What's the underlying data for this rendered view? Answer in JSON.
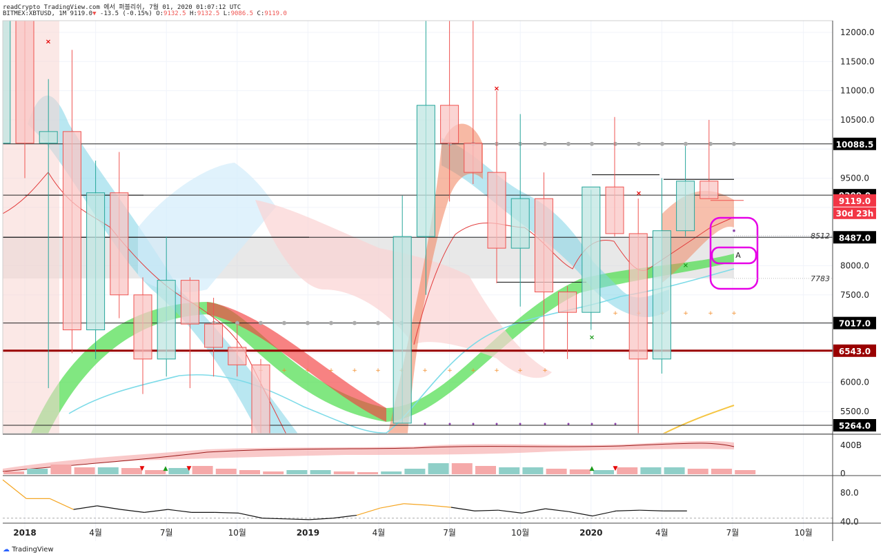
{
  "header": {
    "attribution": "readCrypto TradingView.com 에서 퍼블리쉬, 7월 01, 2020 01:07:12 UTC",
    "ohlc_line": {
      "symbol": "BITMEX:XBTUSD, 1M",
      "last": "9119.0",
      "change": "-13.5 (-0.15%)",
      "o_label": "O:",
      "o": "9132.5",
      "h_label": "H:",
      "h": "9132.5",
      "l_label": "L:",
      "l": "9086.5",
      "c_label": "C:",
      "c": "9119.0"
    }
  },
  "footer": {
    "brand": "TradingView"
  },
  "colors": {
    "up": "#26a69a",
    "down": "#ef5350",
    "grid": "#f0f3fa",
    "magenta": "#e600e6",
    "darkred": "#990000"
  },
  "chart_data": [
    {
      "type": "candlestick",
      "title": "BITMEX:XBTUSD, 1M",
      "x_ticks": [
        "2018",
        "4월",
        "7월",
        "10월",
        "2019",
        "4월",
        "7월",
        "10월",
        "2020",
        "4월",
        "7월",
        "10월"
      ],
      "ylim": [
        5200,
        12300
      ],
      "y_ticks": [
        "12000.0",
        "11500.0",
        "11000.0",
        "10500.0",
        "9500.0",
        "8000.0",
        "7500.0",
        "6000.0",
        "5500.0"
      ],
      "candles": [
        {
          "month": "2017-12",
          "open": 10100,
          "high": 12300,
          "low": 9500,
          "close": 12300
        },
        {
          "month": "2018-01",
          "open": 12300,
          "high": 12300,
          "low": 9500,
          "close": 10100
        },
        {
          "month": "2018-02",
          "open": 10100,
          "high": 11200,
          "low": 5900,
          "close": 10300
        },
        {
          "month": "2018-03",
          "open": 10300,
          "high": 11700,
          "low": 6500,
          "close": 6900
        },
        {
          "month": "2018-04",
          "open": 6900,
          "high": 9800,
          "low": 6400,
          "close": 9250
        },
        {
          "month": "2018-05",
          "open": 9250,
          "high": 9950,
          "low": 7100,
          "close": 7500
        },
        {
          "month": "2018-06",
          "open": 7500,
          "high": 7800,
          "low": 5800,
          "close": 6400
        },
        {
          "month": "2018-07",
          "open": 6400,
          "high": 8500,
          "low": 6100,
          "close": 7750
        },
        {
          "month": "2018-08",
          "open": 7750,
          "high": 7800,
          "low": 5900,
          "close": 7000
        },
        {
          "month": "2018-09",
          "open": 7000,
          "high": 7450,
          "low": 6100,
          "close": 6600
        },
        {
          "month": "2018-10",
          "open": 6600,
          "high": 7000,
          "low": 6100,
          "close": 6300
        },
        {
          "month": "2018-11",
          "open": 6300,
          "high": 6400,
          "low": 3500,
          "close": 4000
        },
        {
          "month": "2019-05",
          "open": 5300,
          "high": 9200,
          "low": 5300,
          "close": 8500
        },
        {
          "month": "2019-06",
          "open": 8500,
          "high": 13800,
          "low": 7500,
          "close": 10750
        },
        {
          "month": "2019-07",
          "open": 10750,
          "high": 13100,
          "low": 9100,
          "close": 10100
        },
        {
          "month": "2019-08",
          "open": 10100,
          "high": 12400,
          "low": 9400,
          "close": 9600
        },
        {
          "month": "2019-09",
          "open": 9600,
          "high": 11000,
          "low": 7700,
          "close": 8300
        },
        {
          "month": "2019-10",
          "open": 8300,
          "high": 10600,
          "low": 7300,
          "close": 9150
        },
        {
          "month": "2019-11",
          "open": 9150,
          "high": 9600,
          "low": 6500,
          "close": 7550
        },
        {
          "month": "2019-12",
          "open": 7550,
          "high": 7650,
          "low": 6400,
          "close": 7200
        },
        {
          "month": "2020-01",
          "open": 7200,
          "high": 9300,
          "low": 6900,
          "close": 9350
        },
        {
          "month": "2020-02",
          "open": 9350,
          "high": 10550,
          "low": 8500,
          "close": 8550
        },
        {
          "month": "2020-03",
          "open": 8550,
          "high": 9150,
          "low": 3800,
          "close": 6400
        },
        {
          "month": "2020-04",
          "open": 6400,
          "high": 9500,
          "low": 6150,
          "close": 8600
        },
        {
          "month": "2020-05",
          "open": 8600,
          "high": 10050,
          "low": 8500,
          "close": 9450
        },
        {
          "month": "2020-06",
          "open": 9450,
          "high": 10500,
          "low": 9150,
          "close": 9150
        }
      ],
      "horizontal_levels": [
        {
          "price": 10088.5,
          "label": "10088.5",
          "color": "#000000"
        },
        {
          "price": 9209.0,
          "label": "9209.0",
          "color": "#000000"
        },
        {
          "price": 9119.0,
          "label": "9119.0",
          "color": "#f23645"
        },
        {
          "price": 8487.0,
          "label": "8487.0",
          "color": "#000000"
        },
        {
          "price": 7017.0,
          "label": "7017.0",
          "color": "#000000"
        },
        {
          "price": 6543.0,
          "label": "6543.0",
          "color": "#990000"
        },
        {
          "price": 5264.0,
          "label": "5264.0",
          "color": "#000000"
        }
      ],
      "countdown_label": "30d 23h",
      "side_labels": [
        {
          "price": 8512,
          "label": "8512"
        },
        {
          "price": 7783,
          "label": "7783"
        }
      ],
      "annotation_letter": "A"
    },
    {
      "type": "bar",
      "title": "volume",
      "y_ticks": [
        "400B",
        "0"
      ]
    },
    {
      "type": "line",
      "title": "oscillator",
      "y_ticks": [
        "80.0",
        "40.0"
      ],
      "values": [
        98,
        72,
        72,
        57,
        62,
        57,
        53,
        57,
        53,
        53,
        52,
        45,
        44,
        43,
        45,
        49,
        59,
        65,
        63,
        60,
        55,
        56,
        52,
        58,
        54,
        48,
        55,
        56,
        55,
        55
      ]
    }
  ]
}
